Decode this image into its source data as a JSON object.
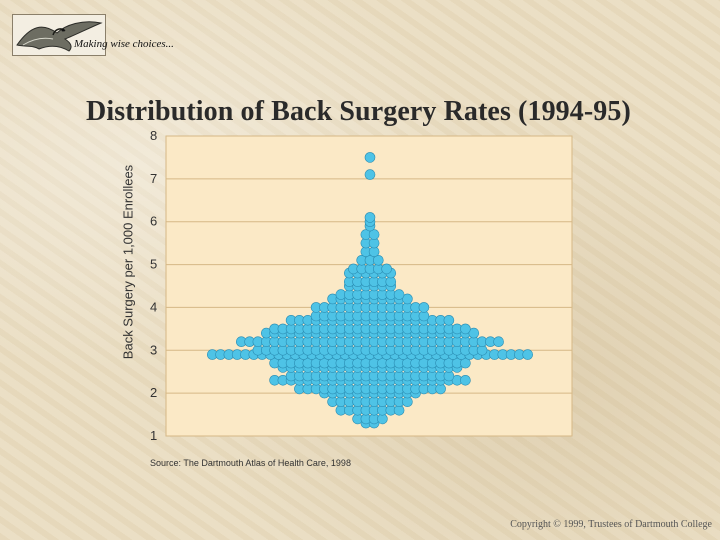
{
  "header": {
    "tagline": "Making wise choices...",
    "logo_icon": "bird-icon"
  },
  "colors": {
    "plot_bg": "#fbe9c6",
    "plot_border": "#d6b886",
    "dot_fill": "#4ec3e6",
    "dot_stroke": "#2b8db3",
    "page_bg": "#e9dcc0"
  },
  "chart_data": {
    "type": "scatter",
    "subtype": "dot-density (bee swarm) distribution",
    "title": "Distribution of Back Surgery Rates (1994-95)",
    "ylabel": "Back Surgery per 1,000 Enrollees",
    "xlabel": "",
    "ylim": [
      1,
      8
    ],
    "yticks": [
      1,
      2,
      3,
      4,
      5,
      6,
      7,
      8
    ],
    "grid": "horizontal",
    "bin_width": 0.1,
    "rows": [
      {
        "y": 1.3,
        "count": 2
      },
      {
        "y": 1.4,
        "count": 4
      },
      {
        "y": 1.6,
        "count": 8
      },
      {
        "y": 1.8,
        "count": 10
      },
      {
        "y": 2.0,
        "count": 12
      },
      {
        "y": 2.1,
        "count": 18
      },
      {
        "y": 2.3,
        "count": 24
      },
      {
        "y": 2.4,
        "count": 20
      },
      {
        "y": 2.6,
        "count": 22
      },
      {
        "y": 2.7,
        "count": 24
      },
      {
        "y": 2.9,
        "count": 39
      },
      {
        "y": 3.0,
        "count": 28
      },
      {
        "y": 3.2,
        "count": 32
      },
      {
        "y": 3.4,
        "count": 26
      },
      {
        "y": 3.5,
        "count": 24
      },
      {
        "y": 3.7,
        "count": 20
      },
      {
        "y": 3.8,
        "count": 14
      },
      {
        "y": 4.0,
        "count": 14
      },
      {
        "y": 4.2,
        "count": 10
      },
      {
        "y": 4.3,
        "count": 8
      },
      {
        "y": 4.5,
        "count": 6
      },
      {
        "y": 4.6,
        "count": 6
      },
      {
        "y": 4.8,
        "count": 6
      },
      {
        "y": 4.9,
        "count": 5
      },
      {
        "y": 5.1,
        "count": 3
      },
      {
        "y": 5.3,
        "count": 2
      },
      {
        "y": 5.5,
        "count": 2
      },
      {
        "y": 5.7,
        "count": 2
      },
      {
        "y": 5.9,
        "count": 1
      },
      {
        "y": 6.0,
        "count": 1
      },
      {
        "y": 6.1,
        "count": 1
      },
      {
        "y": 7.1,
        "count": 1
      },
      {
        "y": 7.5,
        "count": 1
      }
    ],
    "source_note": "Source: The Dartmouth Atlas of Health Care, 1998"
  },
  "footer": {
    "copyright": "Copyright © 1999, Trustees of Dartmouth College"
  }
}
